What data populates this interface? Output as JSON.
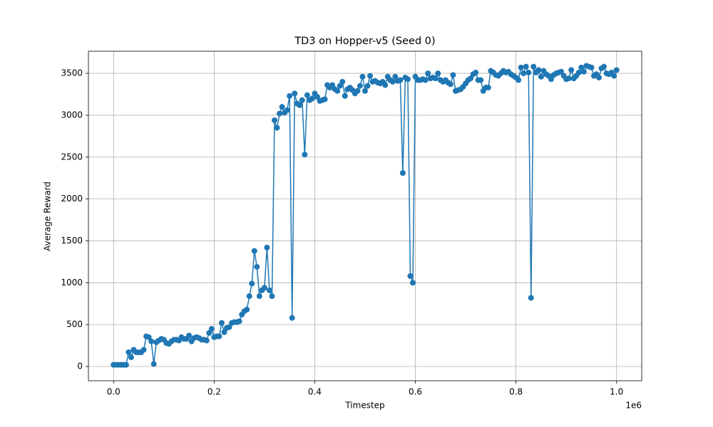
{
  "chart_data": {
    "type": "line",
    "title": "TD3 on Hopper-v5 (Seed 0)",
    "x_label": "Timestep",
    "y_label": "Average Reward",
    "x_offset_label": "1e6",
    "x": [
      0,
      5000,
      10000,
      15000,
      20000,
      25000,
      30000,
      35000,
      40000,
      45000,
      50000,
      55000,
      60000,
      65000,
      70000,
      75000,
      80000,
      85000,
      90000,
      95000,
      100000,
      105000,
      110000,
      115000,
      120000,
      125000,
      130000,
      135000,
      140000,
      145000,
      150000,
      155000,
      160000,
      165000,
      170000,
      175000,
      180000,
      185000,
      190000,
      195000,
      200000,
      205000,
      210000,
      215000,
      220000,
      225000,
      230000,
      235000,
      240000,
      245000,
      250000,
      255000,
      260000,
      265000,
      270000,
      275000,
      280000,
      285000,
      290000,
      295000,
      300000,
      305000,
      310000,
      315000,
      320000,
      325000,
      330000,
      335000,
      340000,
      345000,
      350000,
      355000,
      360000,
      365000,
      370000,
      375000,
      380000,
      385000,
      390000,
      395000,
      400000,
      405000,
      410000,
      415000,
      420000,
      425000,
      430000,
      435000,
      440000,
      445000,
      450000,
      455000,
      460000,
      465000,
      470000,
      475000,
      480000,
      485000,
      490000,
      495000,
      500000,
      505000,
      510000,
      515000,
      520000,
      525000,
      530000,
      535000,
      540000,
      545000,
      550000,
      555000,
      560000,
      565000,
      570000,
      575000,
      580000,
      585000,
      590000,
      595000,
      600000,
      605000,
      610000,
      615000,
      620000,
      625000,
      630000,
      635000,
      640000,
      645000,
      650000,
      655000,
      660000,
      665000,
      670000,
      675000,
      680000,
      685000,
      690000,
      695000,
      700000,
      705000,
      710000,
      715000,
      720000,
      725000,
      730000,
      735000,
      740000,
      745000,
      750000,
      755000,
      760000,
      765000,
      770000,
      775000,
      780000,
      785000,
      790000,
      795000,
      800000,
      805000,
      810000,
      815000,
      820000,
      825000,
      830000,
      835000,
      840000,
      845000,
      850000,
      855000,
      860000,
      865000,
      870000,
      875000,
      880000,
      885000,
      890000,
      895000,
      900000,
      905000,
      910000,
      915000,
      920000,
      925000,
      930000,
      935000,
      940000,
      945000,
      950000,
      955000,
      960000,
      965000,
      970000,
      975000,
      980000,
      985000,
      990000,
      995000,
      1000000
    ],
    "series": [
      {
        "color": "#1f77b4",
        "values": [
          20,
          20,
          20,
          20,
          20,
          20,
          170,
          110,
          200,
          170,
          170,
          170,
          200,
          360,
          350,
          300,
          30,
          290,
          310,
          330,
          320,
          280,
          270,
          300,
          320,
          320,
          310,
          350,
          330,
          330,
          370,
          300,
          340,
          350,
          340,
          320,
          320,
          310,
          400,
          450,
          350,
          360,
          360,
          520,
          410,
          460,
          470,
          520,
          530,
          530,
          540,
          620,
          660,
          680,
          840,
          990,
          1380,
          1190,
          840,
          910,
          940,
          1420,
          910,
          840,
          2940,
          2850,
          3020,
          3100,
          3030,
          3060,
          3230,
          580,
          3260,
          3140,
          3120,
          3180,
          2530,
          3240,
          3180,
          3200,
          3260,
          3220,
          3170,
          3180,
          3190,
          3360,
          3330,
          3360,
          3310,
          3290,
          3350,
          3400,
          3230,
          3310,
          3330,
          3300,
          3260,
          3290,
          3350,
          3460,
          3290,
          3350,
          3470,
          3400,
          3410,
          3390,
          3380,
          3400,
          3360,
          3460,
          3420,
          3400,
          3460,
          3410,
          3420,
          2310,
          3450,
          3430,
          1080,
          1000,
          3460,
          3420,
          3420,
          3430,
          3420,
          3500,
          3440,
          3450,
          3440,
          3500,
          3420,
          3400,
          3420,
          3390,
          3370,
          3480,
          3290,
          3300,
          3310,
          3340,
          3380,
          3420,
          3440,
          3490,
          3510,
          3420,
          3420,
          3290,
          3330,
          3330,
          3530,
          3510,
          3480,
          3470,
          3500,
          3530,
          3510,
          3520,
          3490,
          3470,
          3450,
          3420,
          3570,
          3500,
          3580,
          3510,
          820,
          3580,
          3510,
          3540,
          3460,
          3530,
          3490,
          3470,
          3430,
          3480,
          3500,
          3510,
          3520,
          3470,
          3430,
          3440,
          3540,
          3440,
          3470,
          3510,
          3570,
          3520,
          3590,
          3580,
          3570,
          3470,
          3490,
          3450,
          3560,
          3580,
          3500,
          3490,
          3510,
          3470,
          3540
        ]
      }
    ],
    "xlim": [
      -50000,
      1050000
    ],
    "xticks": [
      {
        "value": 0,
        "label": "0.0"
      },
      {
        "value": 200000,
        "label": "0.2"
      },
      {
        "value": 400000,
        "label": "0.4"
      },
      {
        "value": 600000,
        "label": "0.6"
      },
      {
        "value": 800000,
        "label": "0.8"
      },
      {
        "value": 1000000,
        "label": "1.0"
      }
    ],
    "ylim": [
      -170,
      3764
    ],
    "yticks": [
      0,
      500,
      1000,
      1500,
      2000,
      2500,
      3000,
      3500
    ],
    "grid": true
  }
}
